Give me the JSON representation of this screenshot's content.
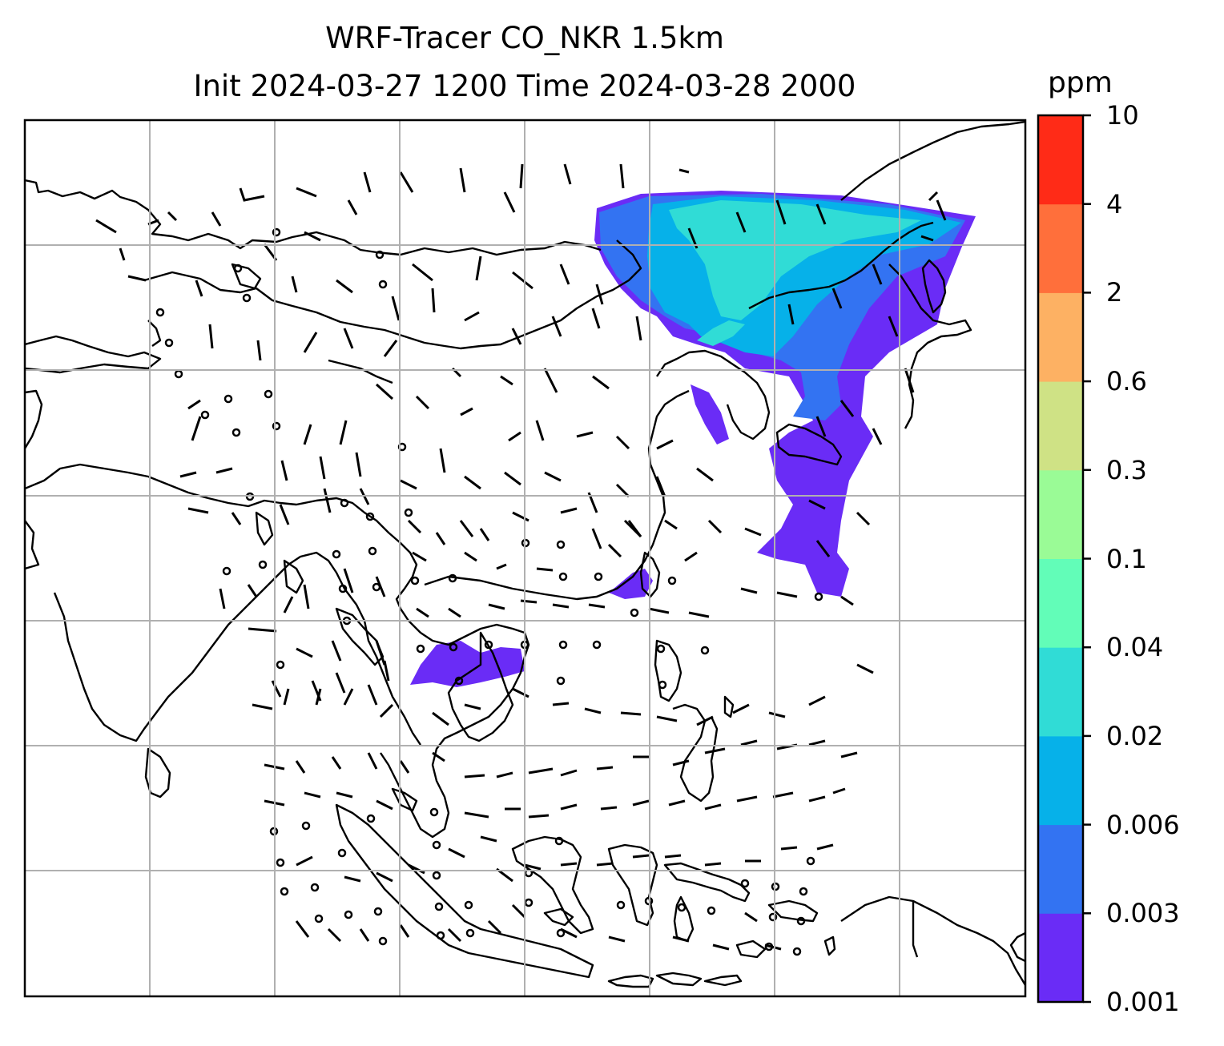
{
  "title_line1": "WRF-Tracer CO_NKR 1.5km",
  "title_line2": "Init 2024-03-27 1200 Time 2024-03-28 2000",
  "colorbar": {
    "unit": "ppm",
    "levels": [
      "0.001",
      "0.003",
      "0.006",
      "0.02",
      "0.04",
      "0.1",
      "0.3",
      "0.6",
      "2",
      "4",
      "10"
    ],
    "colors": [
      "#6a2cf6",
      "#3373f2",
      "#06b1e9",
      "#30dcd6",
      "#62fdb8",
      "#9afb96",
      "#cfe285",
      "#fdb163",
      "#ff6f3b",
      "#ff2b17"
    ]
  },
  "map": {
    "grid": "on",
    "plume_colors": {
      "low": "#6a2cf6",
      "mid": "#3373f2",
      "high": "#06b1e9",
      "peak": "#30dcd6"
    }
  }
}
